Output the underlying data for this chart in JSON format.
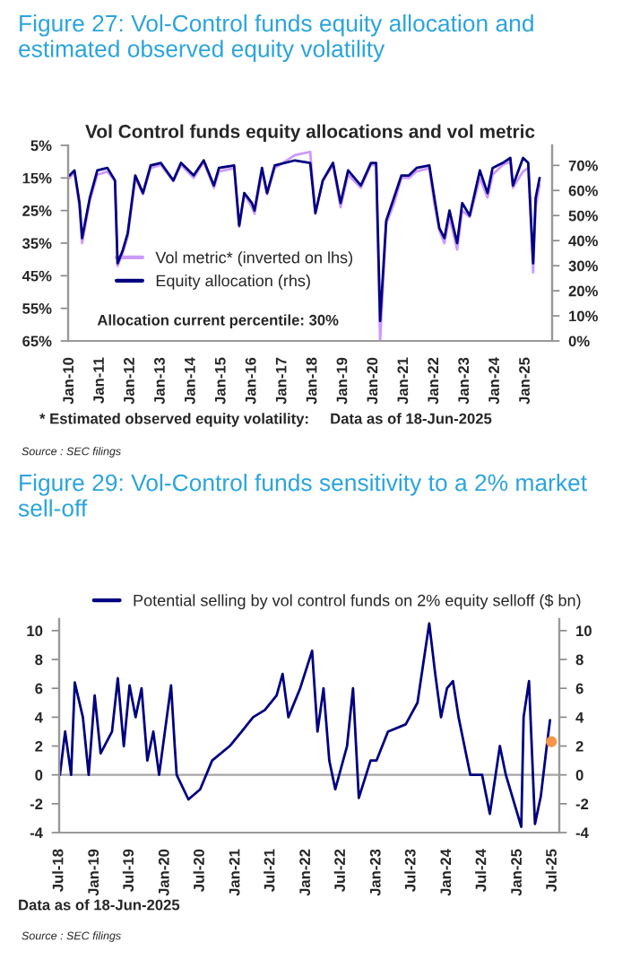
{
  "chart_data": [
    {
      "type": "line",
      "title": "Figure 27: Vol-Control funds equity allocation and estimated observed equity volatility",
      "subtitle": "Vol Control funds equity allocations and vol metric",
      "annotations": [
        "Allocation current percentile: 30%",
        "* Estimated observed equity volatility:     Data as of 18-Jun-2025",
        "Source : SEC filings"
      ],
      "xlim": [
        "2009-12-15",
        "2025-11-15"
      ],
      "xticks": [
        {
          "value": "2010-01",
          "label": "Jan-10"
        },
        {
          "value": "2011-01",
          "label": "Jan-11"
        },
        {
          "value": "2012-01",
          "label": "Jan-12"
        },
        {
          "value": "2013-01",
          "label": "Jan-13"
        },
        {
          "value": "2014-01",
          "label": "Jan-14"
        },
        {
          "value": "2015-01",
          "label": "Jan-15"
        },
        {
          "value": "2016-01",
          "label": "Jan-16"
        },
        {
          "value": "2017-01",
          "label": "Jan-17"
        },
        {
          "value": "2018-01",
          "label": "Jan-18"
        },
        {
          "value": "2019-01",
          "label": "Jan-19"
        },
        {
          "value": "2020-01",
          "label": "Jan-20"
        },
        {
          "value": "2021-01",
          "label": "Jan-21"
        },
        {
          "value": "2022-01",
          "label": "Jan-22"
        },
        {
          "value": "2023-01",
          "label": "Jan-23"
        },
        {
          "value": "2024-01",
          "label": "Jan-24"
        },
        {
          "value": "2025-01",
          "label": "Jan-25"
        }
      ],
      "ylim": [
        65,
        5
      ],
      "yticks": [
        {
          "value": 5,
          "label": "5%"
        },
        {
          "value": 15,
          "label": "15%"
        },
        {
          "value": 25,
          "label": "25%"
        },
        {
          "value": 35,
          "label": "35%"
        },
        {
          "value": 45,
          "label": "45%"
        },
        {
          "value": 55,
          "label": "55%"
        },
        {
          "value": 65,
          "label": "65%"
        }
      ],
      "y2lim": [
        0,
        78
      ],
      "y2ticks": [
        {
          "value": 0,
          "label": "0%"
        },
        {
          "value": 10,
          "label": "10%"
        },
        {
          "value": 20,
          "label": "20%"
        },
        {
          "value": 30,
          "label": "30%"
        },
        {
          "value": 40,
          "label": "40%"
        },
        {
          "value": 50,
          "label": "50%"
        },
        {
          "value": 60,
          "label": "60%"
        },
        {
          "value": 70,
          "label": "70%"
        }
      ],
      "legend": "left",
      "grid": false,
      "series": [
        {
          "name": "Vol metric* (inverted on lhs)",
          "color": "#cc99ff",
          "x": [
            "2010-01",
            "2010-03",
            "2010-05",
            "2010-06",
            "2010-09",
            "2010-12",
            "2011-04",
            "2011-07",
            "2011-08",
            "2011-10",
            "2011-12",
            "2012-03",
            "2012-06",
            "2012-09",
            "2013-01",
            "2013-06",
            "2013-09",
            "2014-02",
            "2014-06",
            "2014-10",
            "2014-12",
            "2015-06",
            "2015-08",
            "2015-10",
            "2016-01",
            "2016-02",
            "2016-05",
            "2016-07",
            "2016-10",
            "2017-06",
            "2017-12",
            "2018-02",
            "2018-05",
            "2018-09",
            "2018-12",
            "2019-03",
            "2019-08",
            "2019-12",
            "2020-02",
            "2020-03-20",
            "2020-06",
            "2020-09",
            "2020-12",
            "2021-03",
            "2021-06",
            "2021-11",
            "2022-01",
            "2022-03",
            "2022-05",
            "2022-07",
            "2022-10",
            "2022-12",
            "2023-03",
            "2023-07",
            "2023-10",
            "2023-12",
            "2024-04",
            "2024-07",
            "2024-08",
            "2024-12",
            "2025-02",
            "2025-04",
            "2025-05",
            "2025-06-18"
          ],
          "values": [
            15,
            13,
            24,
            35,
            22,
            14,
            13,
            16,
            42,
            38,
            33,
            15,
            20,
            12,
            11,
            16,
            11,
            15,
            10,
            18,
            13,
            12,
            30,
            20,
            24,
            26,
            13,
            20,
            12,
            8,
            7,
            26,
            16,
            11,
            24,
            14,
            18,
            11,
            11,
            65,
            29,
            23,
            15,
            15,
            13,
            12,
            23,
            31,
            35,
            27,
            37,
            25,
            27,
            15,
            21,
            14,
            11,
            10,
            18,
            13,
            12,
            44,
            24,
            17
          ]
        },
        {
          "name": "Equity allocation (rhs)",
          "color": "#000080",
          "axis": "y2",
          "x": [
            "2010-01",
            "2010-03",
            "2010-05",
            "2010-06",
            "2010-09",
            "2010-12",
            "2011-04",
            "2011-07",
            "2011-08",
            "2011-10",
            "2011-12",
            "2012-03",
            "2012-06",
            "2012-09",
            "2013-01",
            "2013-06",
            "2013-09",
            "2014-02",
            "2014-06",
            "2014-10",
            "2014-12",
            "2015-06",
            "2015-08",
            "2015-10",
            "2016-01",
            "2016-02",
            "2016-05",
            "2016-07",
            "2016-10",
            "2017-06",
            "2017-12",
            "2018-02",
            "2018-05",
            "2018-09",
            "2018-12",
            "2019-03",
            "2019-08",
            "2019-12",
            "2020-02",
            "2020-03-20",
            "2020-06",
            "2020-09",
            "2020-12",
            "2021-03",
            "2021-06",
            "2021-11",
            "2022-01",
            "2022-03",
            "2022-05",
            "2022-07",
            "2022-10",
            "2022-12",
            "2023-03",
            "2023-07",
            "2023-10",
            "2023-12",
            "2024-04",
            "2024-07",
            "2024-08",
            "2024-12",
            "2025-02",
            "2025-04",
            "2025-05",
            "2025-06-18"
          ],
          "values": [
            66,
            68,
            55,
            41,
            57,
            68,
            69,
            64,
            31,
            36,
            43,
            66,
            59,
            70,
            71,
            64,
            71,
            66,
            72,
            62,
            69,
            70,
            46,
            59,
            55,
            52,
            69,
            59,
            70,
            72,
            71,
            51,
            64,
            71,
            55,
            68,
            62,
            71,
            71,
            8,
            48,
            57,
            66,
            66,
            69,
            70,
            57,
            45,
            41,
            52,
            39,
            55,
            50,
            68,
            59,
            69,
            71,
            73,
            62,
            73,
            71,
            31,
            57,
            65
          ]
        }
      ]
    },
    {
      "type": "line",
      "title": "Figure 29: Vol-Control funds sensitivity to a 2% market sell-off",
      "annotations": [
        "Data as of 18-Jun-2025",
        "Source : SEC filings"
      ],
      "xlim": [
        "2018-07-01",
        "2025-08-05"
      ],
      "xticks": [
        {
          "value": "2018-07",
          "label": "Jul-18"
        },
        {
          "value": "2019-01",
          "label": "Jan-19"
        },
        {
          "value": "2019-07",
          "label": "Jul-19"
        },
        {
          "value": "2020-01",
          "label": "Jan-20"
        },
        {
          "value": "2020-07",
          "label": "Jul-20"
        },
        {
          "value": "2021-01",
          "label": "Jan-21"
        },
        {
          "value": "2021-07",
          "label": "Jul-21"
        },
        {
          "value": "2022-01",
          "label": "Jan-22"
        },
        {
          "value": "2022-07",
          "label": "Jul-22"
        },
        {
          "value": "2023-01",
          "label": "Jan-23"
        },
        {
          "value": "2023-07",
          "label": "Jul-23"
        },
        {
          "value": "2024-01",
          "label": "Jan-24"
        },
        {
          "value": "2024-07",
          "label": "Jul-24"
        },
        {
          "value": "2025-01",
          "label": "Jan-25"
        },
        {
          "value": "2025-07",
          "label": "Jul-25"
        }
      ],
      "ylim": [
        -4,
        10.8
      ],
      "yticks": [
        -4,
        -2,
        0,
        2,
        4,
        6,
        8,
        10
      ],
      "y2lim": [
        -4,
        10.8
      ],
      "y2ticks": [
        -4,
        -2,
        0,
        2,
        4,
        6,
        8,
        10
      ],
      "legend": "top",
      "grid": false,
      "ref_lines": [
        {
          "axis": "y",
          "value": 0,
          "color": "#a6a6a6"
        }
      ],
      "series": [
        {
          "name": "Potential selling by vol control funds on 2% equity selloff ($ bn)",
          "color": "#000080",
          "x": [
            "2018-07-05",
            "2018-08",
            "2018-09",
            "2018-09-20",
            "2018-11",
            "2018-12",
            "2019-01",
            "2019-02",
            "2019-04",
            "2019-05",
            "2019-06",
            "2019-07",
            "2019-08",
            "2019-09",
            "2019-10",
            "2019-11",
            "2019-12",
            "2020-02",
            "2020-02-20",
            "2020-03",
            "2020-05",
            "2020-07",
            "2020-09",
            "2020-12",
            "2021-02",
            "2021-04",
            "2021-06",
            "2021-08",
            "2021-09",
            "2021-10",
            "2021-12",
            "2022-02",
            "2022-03",
            "2022-04",
            "2022-05",
            "2022-06",
            "2022-08",
            "2022-09",
            "2022-10",
            "2022-12",
            "2023-01",
            "2023-03",
            "2023-06",
            "2023-08",
            "2023-10",
            "2023-11",
            "2023-12",
            "2024-01",
            "2024-02",
            "2024-03",
            "2024-05",
            "2024-07",
            "2024-08",
            "2024-08-10",
            "2024-10",
            "2024-11",
            "2025-01",
            "2025-01-20",
            "2025-02",
            "2025-03",
            "2025-04",
            "2025-05",
            "2025-06",
            "2025-06-18"
          ],
          "values": [
            0,
            3,
            0,
            6.4,
            4,
            0,
            5.5,
            1.5,
            3,
            6.7,
            2,
            6.2,
            4,
            6,
            1,
            3,
            0,
            6.2,
            2,
            0,
            -1.7,
            -1,
            1,
            2,
            3,
            4,
            4.5,
            5.5,
            7,
            4,
            6,
            8.6,
            3,
            6,
            1,
            -1,
            2,
            6,
            -1.6,
            1,
            1,
            3,
            3.5,
            5,
            10.5,
            7,
            4,
            6,
            6.5,
            4,
            0,
            0,
            null,
            -2.7,
            2,
            0,
            null,
            -3.6,
            4,
            6.5,
            -3.4,
            -1.5,
            2,
            3.8
          ]
        },
        {
          "type": "scatter",
          "color": "#f79646",
          "marker": "circle",
          "x": [
            "2025-06-25"
          ],
          "values": [
            2.3
          ]
        }
      ]
    }
  ]
}
